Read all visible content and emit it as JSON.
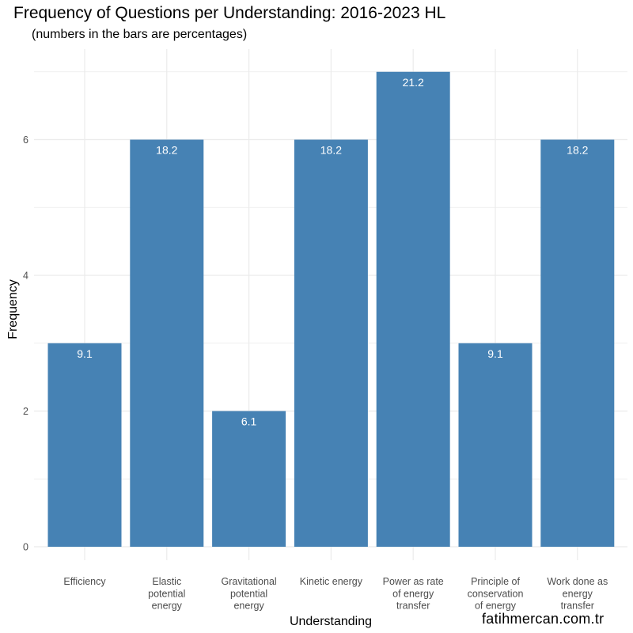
{
  "chart_data": {
    "type": "bar",
    "title": "Frequency of Questions per Understanding: 2016-2023 HL",
    "subtitle": "(numbers in the bars are percentages)",
    "xlabel": "Understanding",
    "ylabel": "Frequency",
    "ylim": [
      0,
      7.5
    ],
    "yticks": [
      0,
      2,
      4,
      6
    ],
    "grid": true,
    "categories": [
      [
        "Efficiency"
      ],
      [
        "Elastic",
        "potential",
        "energy"
      ],
      [
        "Gravitational",
        "potential",
        "energy"
      ],
      [
        "Kinetic energy"
      ],
      [
        "Power as rate",
        "of energy",
        "transfer"
      ],
      [
        "Principle of",
        "conservation",
        "of energy"
      ],
      [
        "Work done as",
        "energy",
        "transfer"
      ]
    ],
    "values": [
      3,
      6,
      2,
      6,
      7,
      3,
      6
    ],
    "bar_labels": [
      "9.1",
      "18.2",
      "6.1",
      "18.2",
      "21.2",
      "9.1",
      "18.2"
    ],
    "bar_color": "#4682B4",
    "grid_color": "#ebebeb"
  },
  "watermark": "fatihmercan.com.tr"
}
